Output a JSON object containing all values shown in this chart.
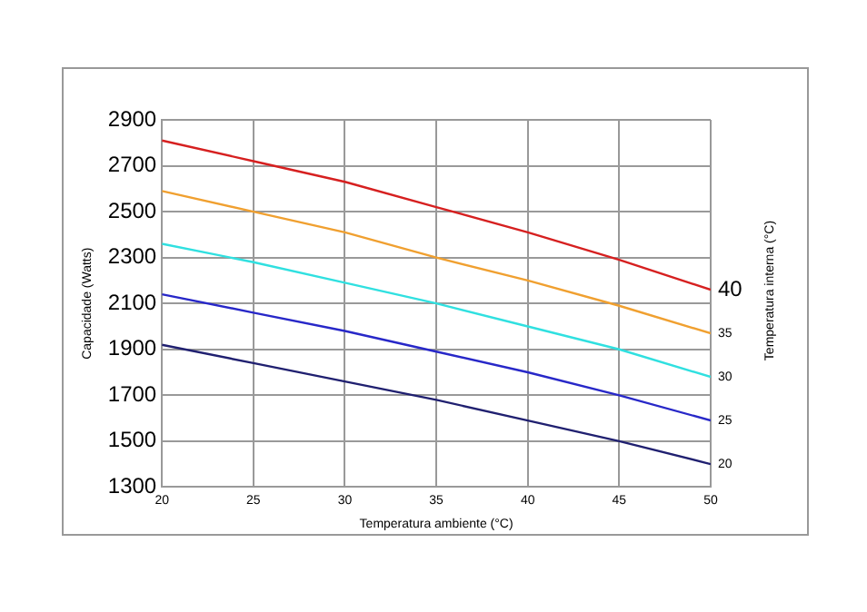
{
  "chart_data": {
    "type": "line",
    "xlabel": "Temperatura ambiente (°C)",
    "ylabel": "Capacidade (Watts)",
    "y2label": "Temperatura interna (°C)",
    "x": [
      20,
      25,
      30,
      35,
      40,
      45,
      50
    ],
    "series": [
      {
        "name": "40",
        "color": "#d62020",
        "values": [
          2810,
          2720,
          2630,
          2520,
          2410,
          2290,
          2160
        ]
      },
      {
        "name": "35",
        "color": "#f0a030",
        "values": [
          2590,
          2500,
          2410,
          2300,
          2200,
          2090,
          1970
        ]
      },
      {
        "name": "30",
        "color": "#30e0e0",
        "values": [
          2360,
          2280,
          2190,
          2100,
          2000,
          1900,
          1780
        ]
      },
      {
        "name": "25",
        "color": "#2828c8",
        "values": [
          2140,
          2060,
          1980,
          1890,
          1800,
          1700,
          1590
        ]
      },
      {
        "name": "20",
        "color": "#202070",
        "values": [
          1920,
          1840,
          1760,
          1680,
          1590,
          1500,
          1400
        ]
      }
    ],
    "xlim": [
      20,
      50
    ],
    "xticks": [
      20,
      25,
      30,
      35,
      40,
      45,
      50
    ],
    "ylim": [
      1300,
      2900
    ],
    "yticks": [
      1300,
      1500,
      1700,
      1900,
      2100,
      2300,
      2500,
      2700,
      2900
    ],
    "grid": true,
    "legend": false,
    "marker": "none",
    "line_style": "solid"
  }
}
